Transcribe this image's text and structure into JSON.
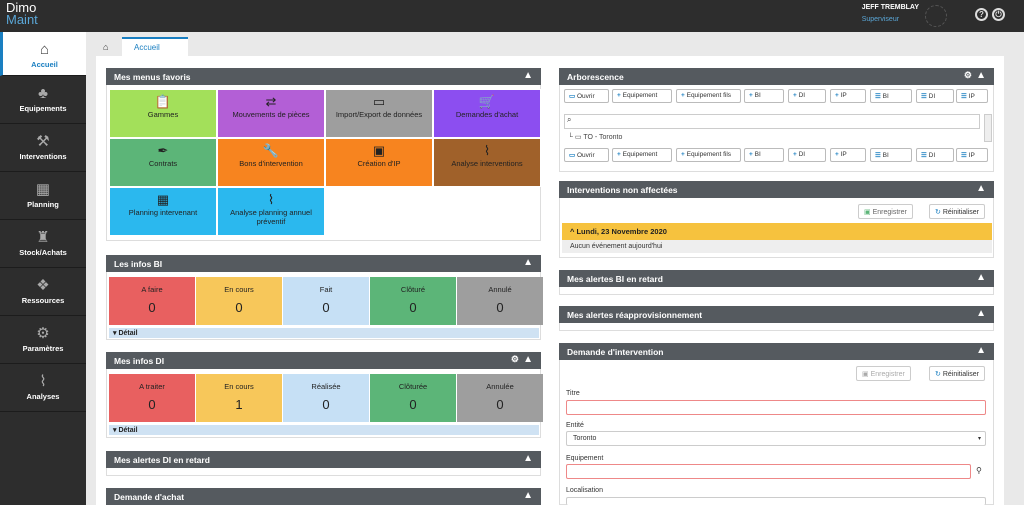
{
  "app": {
    "logo_top": "Dimo",
    "logo_bottom": "Maint",
    "user_name": "JEFF TREMBLAY",
    "user_role": "Superviseur",
    "help_icon": "help-circle-icon",
    "power_icon": "power-icon"
  },
  "sidebar": {
    "items": [
      {
        "label": "Accueil",
        "icon": "home-icon",
        "glyph": "⌂"
      },
      {
        "label": "Equipements",
        "icon": "sitemap-icon",
        "glyph": "♣"
      },
      {
        "label": "Interventions",
        "icon": "toolbox-icon",
        "glyph": "⚒"
      },
      {
        "label": "Planning",
        "icon": "calendar-icon",
        "glyph": "▦"
      },
      {
        "label": "Stock/Achats",
        "icon": "cart-icon",
        "glyph": "♜"
      },
      {
        "label": "Ressources",
        "icon": "cubes-icon",
        "glyph": "❖"
      },
      {
        "label": "Paramètres",
        "icon": "gears-icon",
        "glyph": "⚙"
      },
      {
        "label": "Analyses",
        "icon": "chart-icon",
        "glyph": "⌇"
      }
    ]
  },
  "tab": {
    "label": "Accueil"
  },
  "favoris": {
    "title": "Mes menus favoris",
    "tiles": [
      {
        "label": "Gammes",
        "glyph": "📋",
        "color": "#a3e05a"
      },
      {
        "label": "Mouvements de pièces",
        "glyph": "⇄",
        "color": "#b35fd6"
      },
      {
        "label": "Import/Export de données",
        "glyph": "▭",
        "color": "#9e9e9e"
      },
      {
        "label": "Demandes d'achat",
        "glyph": "🛒",
        "color": "#8c4ef0"
      },
      {
        "label": "Contrats",
        "glyph": "✒",
        "color": "#5cb578"
      },
      {
        "label": "Bons d'intervention",
        "glyph": "🔧",
        "color": "#f7841f"
      },
      {
        "label": "Création d'IP",
        "glyph": "▣",
        "color": "#f7841f"
      },
      {
        "label": "Analyse interventions",
        "glyph": "⌇",
        "color": "#a0612a"
      },
      {
        "label": "Planning intervenant",
        "glyph": "▦",
        "color": "#2bb8ee"
      },
      {
        "label": "Analyse planning annuel préventif",
        "glyph": "⌇",
        "color": "#2bb8ee"
      }
    ]
  },
  "infos_bi": {
    "title": "Les infos BI",
    "detail": "Détail",
    "stats": [
      {
        "label": "A faire",
        "value": "0",
        "color": "#e86060"
      },
      {
        "label": "En cours",
        "value": "0",
        "color": "#f7c75a"
      },
      {
        "label": "Fait",
        "value": "0",
        "color": "#c6e0f5"
      },
      {
        "label": "Clôturé",
        "value": "0",
        "color": "#5cb578"
      },
      {
        "label": "Annulé",
        "value": "0",
        "color": "#9e9e9e"
      }
    ]
  },
  "infos_di": {
    "title": "Mes infos DI",
    "detail": "Détail",
    "stats": [
      {
        "label": "A traiter",
        "value": "0",
        "color": "#e86060"
      },
      {
        "label": "En cours",
        "value": "1",
        "color": "#f7c75a"
      },
      {
        "label": "Réalisée",
        "value": "0",
        "color": "#c6e0f5"
      },
      {
        "label": "Clôturée",
        "value": "0",
        "color": "#5cb578"
      },
      {
        "label": "Annulée",
        "value": "0",
        "color": "#9e9e9e"
      }
    ]
  },
  "alertes_di": {
    "title": "Mes alertes DI en retard"
  },
  "demande_achat": {
    "title": "Demande d'achat"
  },
  "arborescence": {
    "title": "Arborescence",
    "buttons": [
      "Ouvrir",
      "Equipement",
      "Equipement fils",
      "BI",
      "DI",
      "IP",
      "BI",
      "DI",
      "IP"
    ],
    "tree_item": "TO - Toronto"
  },
  "non_affectees": {
    "title": "Interventions non affectées",
    "save": "Enregistrer",
    "reset": "Réinitialiser",
    "date": "Lundi, 23 Novembre 2020",
    "empty": "Aucun événement aujourd'hui"
  },
  "alertes_bi": {
    "title": "Mes alertes BI en retard"
  },
  "reappro": {
    "title": "Mes alertes réapprovisionnement"
  },
  "demande_di": {
    "title": "Demande d'intervention",
    "save": "Enregistrer",
    "reset": "Réinitialiser",
    "titre_label": "Titre",
    "entite_label": "Entité",
    "entite_value": "Toronto",
    "equipement_label": "Equipement",
    "localisation_label": "Localisation"
  }
}
